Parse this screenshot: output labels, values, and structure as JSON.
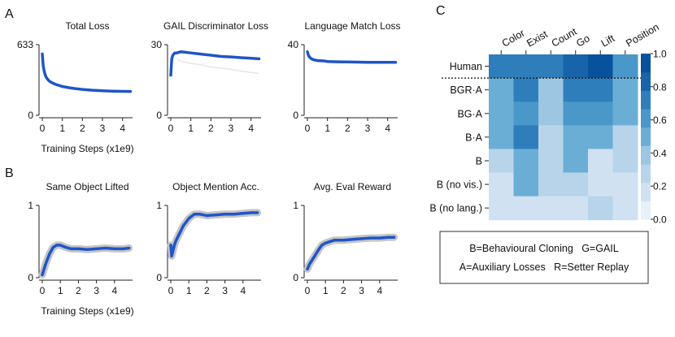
{
  "panel_labels": {
    "a": "A",
    "b": "B",
    "c": "C"
  },
  "colors": {
    "curve": "#1f55c8",
    "band": "#bfbfbf",
    "ghost": "#e6e6e6"
  },
  "chart_data": [
    {
      "id": "total-loss",
      "type": "line",
      "title": "Total Loss",
      "xlabel": "Training Steps (x1e9)",
      "xlim": [
        0,
        4.5
      ],
      "ylim": [
        0,
        633
      ],
      "xticks": [
        "0",
        "1",
        "2",
        "3",
        "4"
      ],
      "yticks": [
        "0",
        "633"
      ],
      "series": [
        {
          "x": [
            0.0,
            0.02,
            0.05,
            0.1,
            0.15,
            0.2,
            0.3,
            0.4,
            0.5,
            0.7,
            1.0,
            1.3,
            1.6,
            2.0,
            2.5,
            3.0,
            3.5,
            4.0,
            4.4
          ],
          "y": [
            550,
            500,
            440,
            390,
            360,
            340,
            315,
            300,
            290,
            275,
            258,
            248,
            240,
            232,
            225,
            220,
            217,
            215,
            214
          ]
        }
      ]
    },
    {
      "id": "gail-loss",
      "type": "line",
      "title": "GAIL Discriminator Loss",
      "xlim": [
        0,
        4.5
      ],
      "ylim": [
        0,
        30
      ],
      "xticks": [
        "0",
        "1",
        "2",
        "3",
        "4"
      ],
      "yticks": [
        "0",
        "30"
      ],
      "series": [
        {
          "x": [
            0.0,
            0.05,
            0.1,
            0.15,
            0.2,
            0.3,
            0.5,
            0.7,
            1.0,
            1.5,
            2.0,
            2.5,
            3.0,
            3.5,
            4.0,
            4.4
          ],
          "y": [
            17,
            24,
            25.5,
            26,
            26.5,
            26.5,
            27,
            26.8,
            26.5,
            26,
            25.5,
            25,
            24.8,
            24.5,
            24.2,
            24
          ]
        },
        {
          "x": [
            0.3,
            0.5,
            1.0,
            1.5,
            2.0,
            2.5,
            3.0,
            3.5,
            4.0,
            4.4
          ],
          "y": [
            24,
            23,
            22,
            21.5,
            20.5,
            20,
            19.5,
            18.8,
            18.2,
            17.8
          ]
        }
      ]
    },
    {
      "id": "lang-match-loss",
      "type": "line",
      "title": "Language Match Loss",
      "xlim": [
        0,
        4.5
      ],
      "ylim": [
        0,
        40
      ],
      "xticks": [
        "0",
        "1",
        "2",
        "3",
        "4"
      ],
      "yticks": [
        "0",
        "40"
      ],
      "series": [
        {
          "x": [
            0.0,
            0.05,
            0.1,
            0.2,
            0.3,
            0.5,
            0.8,
            1.0,
            1.5,
            2.0,
            2.5,
            3.0,
            3.5,
            4.0,
            4.4
          ],
          "y": [
            36,
            34,
            33,
            32,
            31.5,
            31,
            30.8,
            30.5,
            30.3,
            30.2,
            30.1,
            30.0,
            30.0,
            30.0,
            30.0
          ]
        }
      ]
    },
    {
      "id": "same-object-lifted",
      "type": "line",
      "title": "Same Object Lifted",
      "xlabel": "Training Steps (x1e9)",
      "xlim": [
        0,
        5
      ],
      "ylim": [
        0,
        1
      ],
      "xticks": [
        "0",
        "1",
        "2",
        "3",
        "4"
      ],
      "yticks": [
        "0",
        "1"
      ],
      "series": [
        {
          "x": [
            0.0,
            0.1,
            0.2,
            0.4,
            0.6,
            0.8,
            1.0,
            1.3,
            1.6,
            2.0,
            2.5,
            3.0,
            3.5,
            4.0,
            4.5,
            4.8
          ],
          "y": [
            0.04,
            0.12,
            0.2,
            0.33,
            0.42,
            0.45,
            0.45,
            0.42,
            0.4,
            0.4,
            0.39,
            0.4,
            0.41,
            0.4,
            0.4,
            0.41
          ]
        }
      ]
    },
    {
      "id": "object-mention-acc",
      "type": "line",
      "title": "Object Mention Acc.",
      "xlim": [
        0,
        5
      ],
      "ylim": [
        0,
        1
      ],
      "xticks": [
        "0",
        "1",
        "2",
        "3",
        "4"
      ],
      "yticks": [
        "0",
        "1"
      ],
      "series": [
        {
          "x": [
            0.0,
            0.05,
            0.1,
            0.15,
            0.2,
            0.3,
            0.5,
            0.7,
            1.0,
            1.3,
            1.6,
            2.0,
            2.5,
            3.0,
            3.5,
            4.0,
            4.5,
            4.8
          ],
          "y": [
            0.45,
            0.3,
            0.35,
            0.4,
            0.45,
            0.52,
            0.62,
            0.72,
            0.82,
            0.88,
            0.88,
            0.86,
            0.87,
            0.88,
            0.88,
            0.89,
            0.9,
            0.9
          ]
        }
      ]
    },
    {
      "id": "avg-eval-reward",
      "type": "line",
      "title": "Avg. Eval Reward",
      "xlim": [
        0,
        5
      ],
      "ylim": [
        0,
        1
      ],
      "xticks": [
        "0",
        "1",
        "2",
        "3",
        "4"
      ],
      "yticks": [
        "0",
        "1"
      ],
      "series": [
        {
          "x": [
            0.0,
            0.1,
            0.2,
            0.4,
            0.6,
            0.8,
            1.0,
            1.5,
            2.0,
            2.5,
            3.0,
            3.5,
            4.0,
            4.5,
            4.8
          ],
          "y": [
            0.12,
            0.18,
            0.22,
            0.3,
            0.38,
            0.45,
            0.48,
            0.52,
            0.52,
            0.53,
            0.54,
            0.55,
            0.55,
            0.56,
            0.56
          ]
        }
      ]
    },
    {
      "id": "heatmap",
      "type": "heatmap",
      "columns": [
        "Color",
        "Exist",
        "Count",
        "Go",
        "Lift",
        "Position"
      ],
      "rows": [
        "Human",
        "BGR·A",
        "BG·A",
        "B·A",
        "B",
        "B (no vis.)",
        "B (no lang.)"
      ],
      "values": [
        [
          0.8,
          0.8,
          0.75,
          0.9,
          0.95,
          0.65
        ],
        [
          0.55,
          0.7,
          0.35,
          0.75,
          0.8,
          0.5
        ],
        [
          0.55,
          0.65,
          0.35,
          0.6,
          0.6,
          0.45
        ],
        [
          0.5,
          0.75,
          0.2,
          0.5,
          0.5,
          0.25
        ],
        [
          0.2,
          0.55,
          0.2,
          0.45,
          0.15,
          0.2
        ],
        [
          0.15,
          0.55,
          0.2,
          0.25,
          0.1,
          0.15
        ],
        [
          0.1,
          0.1,
          0.1,
          0.15,
          0.2,
          0.1
        ]
      ],
      "colorbar_ticks": [
        "0.0",
        "0.2",
        "0.4",
        "0.6",
        "0.8",
        "1.0"
      ],
      "vrange": [
        0,
        1
      ]
    }
  ],
  "legend": {
    "line1": "B=Behavioural Cloning   G=GAIL",
    "line2": "A=Auxiliary Losses   R=Setter Replay"
  }
}
